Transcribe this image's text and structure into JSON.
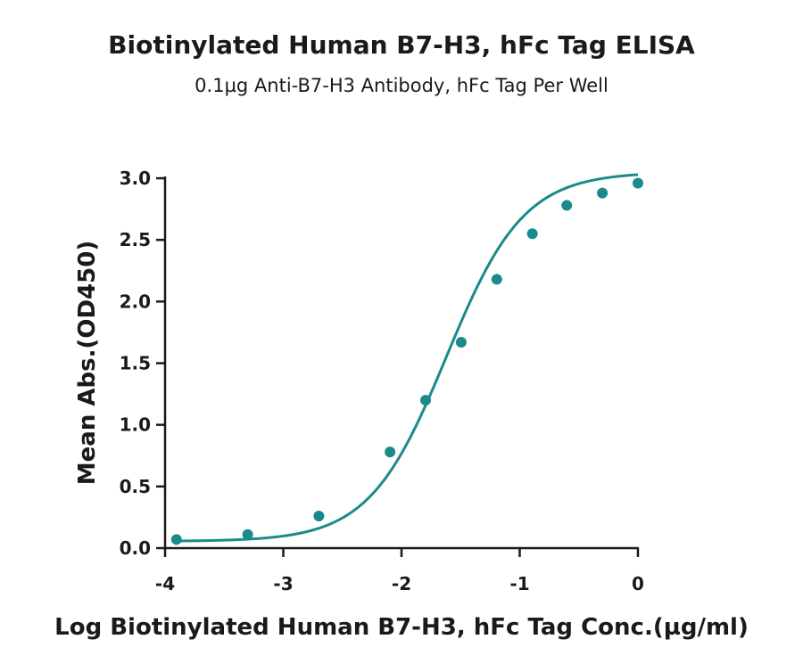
{
  "chart_data": {
    "type": "scatter",
    "title": "Biotinylated Human B7-H3, hFc Tag ELISA",
    "subtitle": "0.1µg Anti-B7-H3 Antibody, hFc Tag Per Well",
    "xlabel": "Log Biotinylated Human B7-H3, hFc Tag Conc.(µg/ml)",
    "ylabel": "Mean Abs.(OD450)",
    "xlim": [
      -4,
      0
    ],
    "ylim": [
      0,
      3.0
    ],
    "x_ticks": [
      -4,
      -3,
      -2,
      -1,
      0
    ],
    "x_tick_labels": [
      "-4",
      "-3",
      "-2",
      "-1",
      "0"
    ],
    "y_ticks": [
      0,
      0.5,
      1.0,
      1.5,
      2.0,
      2.5,
      3.0
    ],
    "y_tick_labels": [
      "0.0",
      "0.5",
      "1.0",
      "1.5",
      "2.0",
      "2.5",
      "3.0"
    ],
    "grid": false,
    "color": "#1a8a8a",
    "series": [
      {
        "x": [
          -3.903,
          -3.301,
          -2.699,
          -2.097,
          -1.796,
          -1.495,
          -1.194,
          -0.893,
          -0.602,
          -0.301,
          0.0
        ],
        "y": [
          0.07,
          0.11,
          0.26,
          0.78,
          1.2,
          1.67,
          2.18,
          2.55,
          2.78,
          2.88,
          2.96
        ]
      }
    ],
    "fit_curve": {
      "type": "4PL",
      "bottom": 0.055,
      "top": 3.05,
      "log_ec50": -1.62,
      "hill_slope": 1.33
    }
  }
}
